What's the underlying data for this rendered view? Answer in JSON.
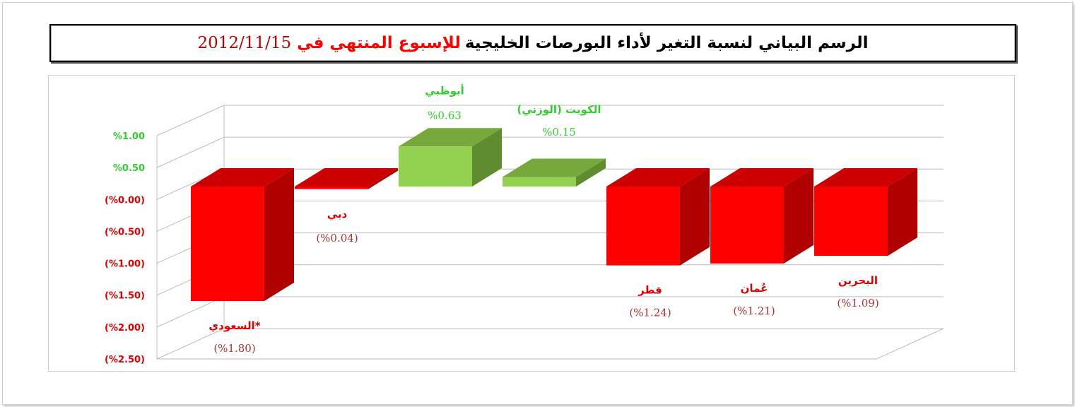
{
  "title": {
    "part1": "الرسم البياني لنسبة التغير لأداء البورصات الخليجية",
    "part2": "للإسبوع المنتهي في",
    "date": "2012/11/15"
  },
  "chart_data": {
    "type": "bar",
    "categories": [
      "السعودي*",
      "دبي",
      "أبوظبي",
      "الكويت (الوزني)",
      "قطر",
      "عُمان",
      "البحرين"
    ],
    "values": [
      -1.8,
      -0.04,
      0.63,
      0.15,
      -1.24,
      -1.21,
      -1.09
    ],
    "value_labels": [
      "(%1.80)",
      "(%0.04)",
      "%0.63",
      "%0.15",
      "(%1.24)",
      "(%1.21)",
      "(%1.09)"
    ],
    "y_tick_values": [
      1.0,
      0.5,
      0.0,
      -0.5,
      -1.0,
      -1.5,
      -2.0,
      -2.5
    ],
    "y_tick_labels": [
      "%1.00",
      "%0.50",
      "(%0.00)",
      "(%0.50)",
      "(%1.00)",
      "(%1.50)",
      "(%2.00)",
      "(%2.50)"
    ],
    "ylim": [
      -2.5,
      1.0
    ],
    "grid": true,
    "colors": {
      "positive": "#92d050",
      "negative": "#ff0000",
      "positive_label": "#33cc33",
      "negative_label": "#e00000"
    }
  }
}
